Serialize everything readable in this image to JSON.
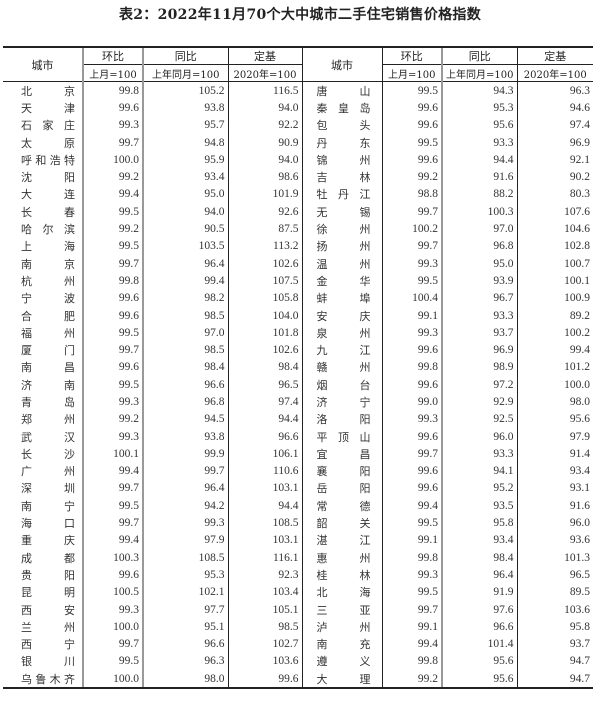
{
  "title": "表2：2022年11月70个大中城市二手住宅销售价格指数",
  "headers": {
    "city": "城市",
    "mom": "环比",
    "yoy": "同比",
    "fixed": "定基",
    "mom_base": "上月=100",
    "yoy_base": "上年同月=100",
    "fixed_base": "2020年=100"
  },
  "left_rows": [
    [
      "北京",
      "99.8",
      "105.2",
      "116.5"
    ],
    [
      "天津",
      "99.6",
      "93.8",
      "94.0"
    ],
    [
      "石家庄",
      "99.3",
      "95.7",
      "92.2"
    ],
    [
      "太原",
      "99.7",
      "94.8",
      "90.9"
    ],
    [
      "呼和浩特",
      "100.0",
      "95.9",
      "94.0"
    ],
    [
      "沈阳",
      "99.2",
      "93.4",
      "98.6"
    ],
    [
      "大连",
      "99.4",
      "95.0",
      "101.9"
    ],
    [
      "长春",
      "99.5",
      "94.0",
      "92.6"
    ],
    [
      "哈尔滨",
      "99.2",
      "90.5",
      "87.5"
    ],
    [
      "上海",
      "99.5",
      "103.5",
      "113.2"
    ],
    [
      "南京",
      "99.7",
      "96.4",
      "102.6"
    ],
    [
      "杭州",
      "99.8",
      "99.4",
      "107.5"
    ],
    [
      "宁波",
      "99.6",
      "98.2",
      "105.8"
    ],
    [
      "合肥",
      "99.6",
      "98.5",
      "104.0"
    ],
    [
      "福州",
      "99.5",
      "97.0",
      "101.8"
    ],
    [
      "厦门",
      "99.7",
      "98.5",
      "102.6"
    ],
    [
      "南昌",
      "99.6",
      "98.4",
      "98.4"
    ],
    [
      "济南",
      "99.5",
      "96.6",
      "96.5"
    ],
    [
      "青岛",
      "99.3",
      "96.8",
      "97.4"
    ],
    [
      "郑州",
      "99.2",
      "94.5",
      "94.4"
    ],
    [
      "武汉",
      "99.3",
      "93.8",
      "96.6"
    ],
    [
      "长沙",
      "100.1",
      "99.9",
      "106.1"
    ],
    [
      "广州",
      "99.4",
      "99.7",
      "110.6"
    ],
    [
      "深圳",
      "99.7",
      "96.4",
      "103.1"
    ],
    [
      "南宁",
      "99.5",
      "94.2",
      "94.4"
    ],
    [
      "海口",
      "99.7",
      "99.3",
      "108.5"
    ],
    [
      "重庆",
      "99.4",
      "97.9",
      "103.1"
    ],
    [
      "成都",
      "100.3",
      "108.5",
      "116.1"
    ],
    [
      "贵阳",
      "99.6",
      "95.3",
      "92.3"
    ],
    [
      "昆明",
      "100.5",
      "102.1",
      "103.4"
    ],
    [
      "西安",
      "99.3",
      "97.7",
      "105.1"
    ],
    [
      "兰州",
      "100.0",
      "95.1",
      "98.5"
    ],
    [
      "西宁",
      "99.7",
      "96.6",
      "102.7"
    ],
    [
      "银川",
      "99.5",
      "96.3",
      "103.6"
    ],
    [
      "乌鲁木齐",
      "100.0",
      "98.0",
      "99.6"
    ]
  ],
  "right_rows": [
    [
      "唐山",
      "99.5",
      "94.3",
      "96.3"
    ],
    [
      "秦皇岛",
      "99.6",
      "95.3",
      "94.6"
    ],
    [
      "包头",
      "99.6",
      "95.6",
      "97.4"
    ],
    [
      "丹东",
      "99.5",
      "93.3",
      "96.9"
    ],
    [
      "锦州",
      "99.6",
      "94.4",
      "92.1"
    ],
    [
      "吉林",
      "99.2",
      "91.6",
      "90.2"
    ],
    [
      "牡丹江",
      "98.8",
      "88.2",
      "80.3"
    ],
    [
      "无锡",
      "99.7",
      "100.3",
      "107.6"
    ],
    [
      "徐州",
      "100.2",
      "97.0",
      "104.6"
    ],
    [
      "扬州",
      "99.7",
      "96.8",
      "102.8"
    ],
    [
      "温州",
      "99.3",
      "95.0",
      "100.7"
    ],
    [
      "金华",
      "99.5",
      "93.9",
      "100.1"
    ],
    [
      "蚌埠",
      "100.4",
      "96.7",
      "100.9"
    ],
    [
      "安庆",
      "99.1",
      "93.3",
      "89.2"
    ],
    [
      "泉州",
      "99.3",
      "93.7",
      "100.2"
    ],
    [
      "九江",
      "99.6",
      "96.9",
      "99.4"
    ],
    [
      "赣州",
      "99.8",
      "98.9",
      "101.2"
    ],
    [
      "烟台",
      "99.6",
      "97.2",
      "100.0"
    ],
    [
      "济宁",
      "99.0",
      "92.9",
      "98.0"
    ],
    [
      "洛阳",
      "99.3",
      "92.5",
      "95.6"
    ],
    [
      "平顶山",
      "99.6",
      "96.0",
      "97.9"
    ],
    [
      "宜昌",
      "99.7",
      "93.3",
      "91.4"
    ],
    [
      "襄阳",
      "99.6",
      "94.1",
      "93.4"
    ],
    [
      "岳阳",
      "99.6",
      "95.2",
      "93.1"
    ],
    [
      "常德",
      "99.4",
      "93.5",
      "91.6"
    ],
    [
      "韶关",
      "99.5",
      "95.8",
      "96.0"
    ],
    [
      "湛江",
      "99.1",
      "93.4",
      "93.6"
    ],
    [
      "惠州",
      "99.8",
      "98.4",
      "101.3"
    ],
    [
      "桂林",
      "99.3",
      "96.4",
      "96.5"
    ],
    [
      "北海",
      "99.5",
      "91.9",
      "89.5"
    ],
    [
      "三亚",
      "99.7",
      "97.6",
      "103.6"
    ],
    [
      "泸州",
      "99.1",
      "96.6",
      "95.8"
    ],
    [
      "南充",
      "99.4",
      "101.4",
      "93.7"
    ],
    [
      "遵义",
      "99.8",
      "95.6",
      "94.7"
    ],
    [
      "大理",
      "99.2",
      "95.6",
      "94.7"
    ]
  ]
}
